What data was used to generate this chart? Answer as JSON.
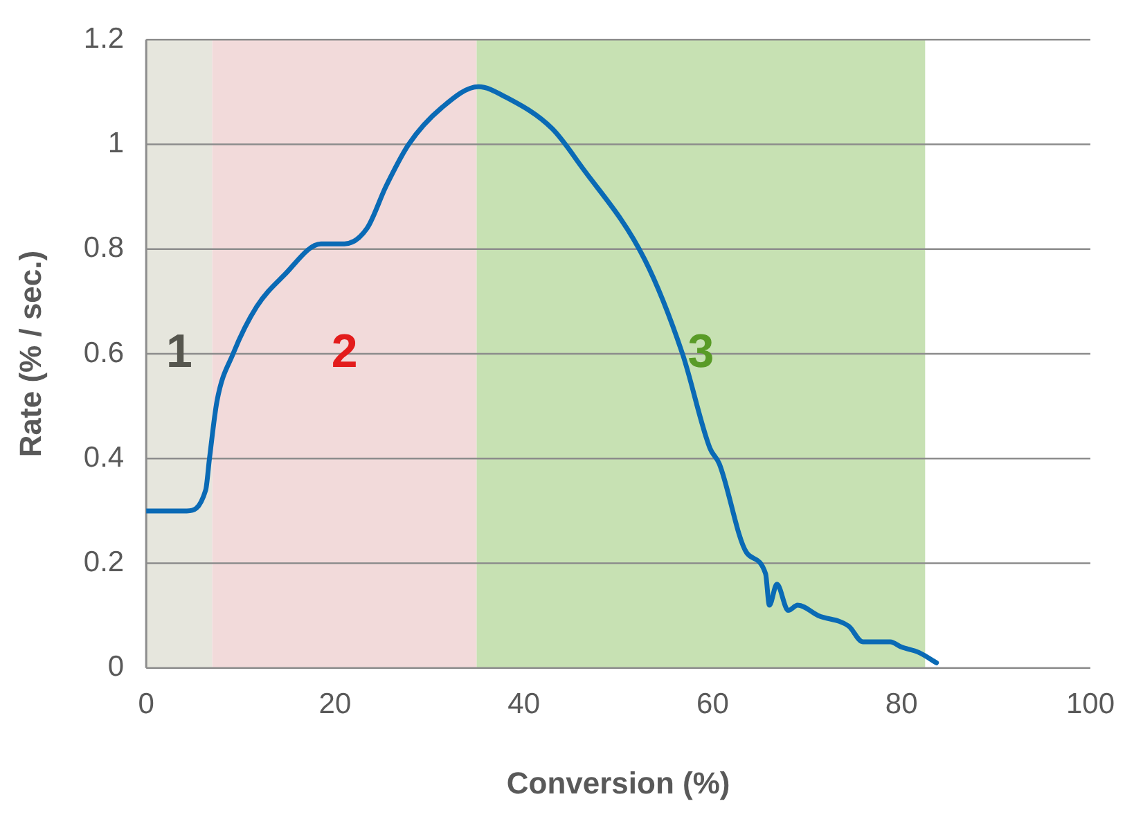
{
  "chart_data": {
    "type": "line",
    "xlabel": "Conversion (%)",
    "ylabel": "Rate (% / sec.)",
    "xlim": [
      0,
      100
    ],
    "xticks": [
      0,
      20,
      40,
      60,
      80,
      100
    ],
    "ylim": [
      0,
      1.2
    ],
    "yticks": [
      0,
      0.2,
      0.4,
      0.6,
      0.8,
      1,
      1.2
    ],
    "grid": "y",
    "legend": false,
    "marker": "none",
    "line_style": "solid",
    "bands": [
      {
        "axis": "x",
        "from": 0,
        "to": 7,
        "color": "#e6e6dd",
        "label": "1"
      },
      {
        "axis": "x",
        "from": 7,
        "to": 35,
        "color": "#f2dada",
        "label": "2"
      },
      {
        "axis": "x",
        "from": 35,
        "to": 82.5,
        "color": "#c7e1b3",
        "label": "3"
      }
    ],
    "series": [
      {
        "color": "#0a6ab5",
        "x": [
          0,
          4.3,
          6.3,
          6.7,
          7.5,
          9.2,
          11.7,
          14.6,
          18.5,
          21,
          23.4,
          25.4,
          27.8,
          31.3,
          35.2,
          38.1,
          43,
          46,
          52.8,
          56.8,
          59.7,
          60.7,
          63.6,
          65.6,
          66,
          66.8,
          68,
          69,
          71.2,
          74.4,
          75.9,
          78.8,
          80,
          81.8,
          83.7
        ],
        "values": [
          0.3,
          0.3,
          0.34,
          0.4,
          0.51,
          0.6,
          0.69,
          0.75,
          0.81,
          0.81,
          0.84,
          0.92,
          1,
          1.07,
          1.11,
          1.09,
          1.03,
          0.96,
          0.78,
          0.6,
          0.42,
          0.39,
          0.22,
          0.18,
          0.12,
          0.16,
          0.11,
          0.12,
          0.1,
          0.08,
          0.05,
          0.05,
          0.04,
          0.03,
          0.01
        ]
      }
    ]
  }
}
